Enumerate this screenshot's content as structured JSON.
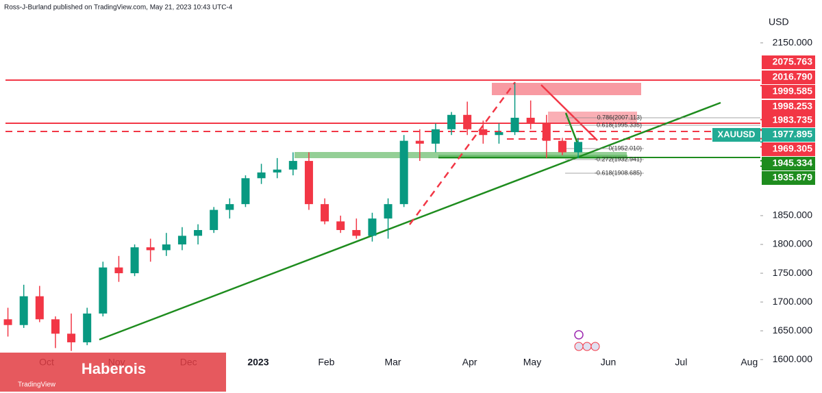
{
  "header": "Ross-J-Burland published on TradingView.com, May 21, 2023 10:43 UTC-4",
  "watermark": "Haberois",
  "brand": "TradingView",
  "chart_data": {
    "type": "candlestick",
    "currency": "USD",
    "symbol": "XAUUSD",
    "x": [
      0.5,
      1.5,
      2.5,
      3.5,
      4.5,
      5.5,
      6.5,
      7.5,
      8.5,
      9.5,
      10.5,
      11.5,
      12.5,
      13.5,
      14.5,
      15.5,
      16.5,
      17.5,
      18.5,
      19.5,
      20.5,
      21.5,
      22.5,
      23.5,
      24.5,
      25.5,
      26.5,
      27.5,
      28.5,
      29.5,
      30.5,
      31.5,
      32.5,
      33.5,
      34.5,
      35.5,
      36.5
    ],
    "open": [
      1670,
      1660,
      1710,
      1670,
      1645,
      1630,
      1680,
      1760,
      1750,
      1795,
      1790,
      1800,
      1815,
      1825,
      1860,
      1870,
      1915,
      1925,
      1930,
      1945,
      1870,
      1840,
      1825,
      1815,
      1845,
      1870,
      1980,
      1975,
      2000,
      2025,
      2000,
      1990,
      1995,
      2020,
      2010,
      1980,
      1960
    ],
    "high": [
      1690,
      1730,
      1728,
      1675,
      1680,
      1690,
      1770,
      1780,
      1800,
      1810,
      1820,
      1830,
      1835,
      1865,
      1880,
      1920,
      1940,
      1950,
      1960,
      1960,
      1880,
      1850,
      1845,
      1855,
      1880,
      1990,
      2000,
      2010,
      2030,
      2048,
      2015,
      2010,
      2080,
      2050,
      2025,
      1985,
      1985
    ],
    "low": [
      1640,
      1655,
      1665,
      1620,
      1615,
      1625,
      1675,
      1735,
      1745,
      1770,
      1780,
      1790,
      1800,
      1820,
      1845,
      1865,
      1905,
      1915,
      1920,
      1860,
      1835,
      1820,
      1810,
      1805,
      1810,
      1865,
      1945,
      1960,
      1990,
      1990,
      1975,
      1975,
      1990,
      2000,
      1950,
      1955,
      1950
    ],
    "close": [
      1660,
      1710,
      1670,
      1645,
      1630,
      1680,
      1760,
      1750,
      1795,
      1790,
      1800,
      1815,
      1825,
      1860,
      1870,
      1915,
      1925,
      1930,
      1945,
      1870,
      1840,
      1825,
      1815,
      1845,
      1870,
      1980,
      1975,
      2000,
      2025,
      2000,
      1990,
      1995,
      2020,
      2010,
      1980,
      1960,
      1978
    ],
    "up_color": "#089981",
    "down_color": "#f23645",
    "xlim": [
      0,
      48
    ],
    "xticks": [
      {
        "value": 2.94,
        "label": "Oct"
      },
      {
        "value": 7.36,
        "label": "Nov"
      },
      {
        "value": 11.9,
        "label": "Dec"
      },
      {
        "value": 16.3,
        "label": "2023"
      },
      {
        "value": 20.6,
        "label": "Feb"
      },
      {
        "value": 24.8,
        "label": "Mar"
      },
      {
        "value": 29.65,
        "label": "Apr"
      },
      {
        "value": 33.6,
        "label": "May"
      },
      {
        "value": 38.4,
        "label": "Jun"
      },
      {
        "value": 43,
        "label": "Jul"
      },
      {
        "value": 47.3,
        "label": "Aug"
      }
    ],
    "ylim": [
      1561,
      2215
    ],
    "yticks": [
      {
        "value": 2150,
        "label": "2150.000"
      },
      {
        "value": 1850,
        "label": "1850.000"
      },
      {
        "value": 1800,
        "label": "1800.000"
      },
      {
        "value": 1750,
        "label": "1750.000"
      },
      {
        "value": 1700,
        "label": "1700.000"
      },
      {
        "value": 1650,
        "label": "1650.000"
      },
      {
        "value": 1600,
        "label": "1600.000"
      }
    ],
    "price_labels": [
      {
        "value": 2075.763,
        "label": "2075.763",
        "color": "#f23645"
      },
      {
        "value": 2016.79,
        "label": "2016.790",
        "color": "#f23645"
      },
      {
        "value": 1999.585,
        "label": "1999.585",
        "color": "#f23645"
      },
      {
        "value": 1998.253,
        "label": "1998.253",
        "color": "#f23645"
      },
      {
        "value": 1983.735,
        "label": "1983.735",
        "color": "#f23645"
      },
      {
        "value": 1977.895,
        "label": "1977.895",
        "color": "#22ab94"
      },
      {
        "value": 1969.305,
        "label": "1969.305",
        "color": "#f23645"
      },
      {
        "value": 1945.334,
        "label": "1945.334",
        "color": "#1e8c1e"
      },
      {
        "value": 1935.879,
        "label": "1935.879",
        "color": "#1e8c1e"
      }
    ],
    "fib_labels": [
      "0.786(2007.113)",
      "0.618(1995.335)",
      "0(1952.010)",
      "-0.272(1932.941)",
      "-0.618(1908.685)"
    ]
  }
}
